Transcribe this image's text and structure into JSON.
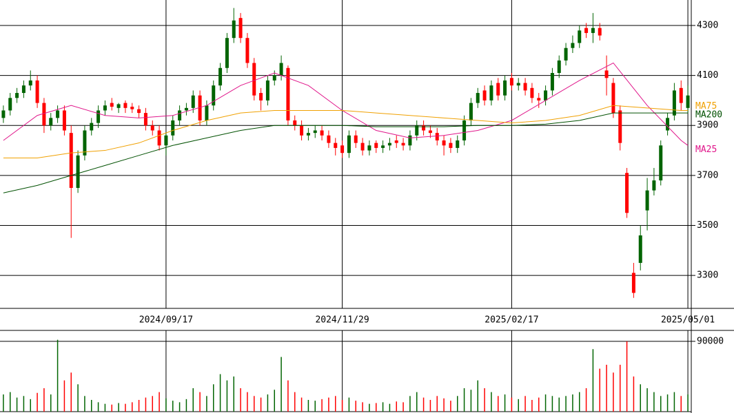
{
  "chart_data": {
    "type": "candlestick",
    "categories": [
      null,
      null,
      null,
      null,
      null,
      null,
      null,
      null,
      null,
      null,
      null,
      null,
      null,
      null,
      null,
      null,
      null,
      null,
      null,
      null,
      null,
      null,
      null,
      null,
      "2024/09/17",
      null,
      null,
      null,
      null,
      null,
      null,
      null,
      null,
      null,
      null,
      null,
      null,
      null,
      null,
      null,
      null,
      null,
      null,
      null,
      null,
      null,
      null,
      null,
      null,
      null,
      "2024/11/29",
      null,
      null,
      null,
      null,
      null,
      null,
      null,
      null,
      null,
      null,
      null,
      null,
      null,
      null,
      null,
      null,
      null,
      null,
      null,
      null,
      null,
      null,
      null,
      null,
      "2025/02/17",
      null,
      null,
      null,
      null,
      null,
      null,
      null,
      null,
      null,
      null,
      null,
      null,
      null,
      null,
      null,
      null,
      null,
      null,
      null,
      null,
      null,
      null,
      null,
      null,
      null,
      "2025/05/01"
    ],
    "open": [
      3930,
      3960,
      4010,
      4030,
      4060,
      4080,
      3990,
      3900,
      3930,
      3960,
      3870,
      3650,
      3780,
      3880,
      3910,
      3960,
      3990,
      3970,
      3990,
      3975,
      3965,
      3950,
      3900,
      3880,
      3820,
      3860,
      3920,
      3960,
      3970,
      4020,
      3920,
      3980,
      4060,
      4130,
      4250,
      4330,
      4250,
      4150,
      4030,
      4000,
      4080,
      4100,
      4130,
      3920,
      3900,
      3860,
      3870,
      3880,
      3860,
      3830,
      3820,
      3790,
      3860,
      3830,
      3800,
      3830,
      3810,
      3820,
      3840,
      3830,
      3820,
      3860,
      3900,
      3880,
      3870,
      3840,
      3830,
      3810,
      3840,
      3920,
      3990,
      4040,
      4000,
      4070,
      4020,
      4090,
      4060,
      4070,
      4050,
      4010,
      4000,
      4040,
      4110,
      4160,
      4210,
      4230,
      4290,
      4270,
      4290,
      4120,
      4070,
      3960,
      3710,
      3310,
      3350,
      3560,
      3640,
      3680,
      3880,
      3940,
      4050,
      3970
    ],
    "high": [
      3980,
      4030,
      4050,
      4080,
      4120,
      4100,
      4010,
      3950,
      3980,
      3980,
      3900,
      3800,
      3900,
      3930,
      3980,
      4000,
      4010,
      3990,
      4000,
      3990,
      3980,
      3970,
      3920,
      3900,
      3870,
      3940,
      3980,
      3990,
      4040,
      4040,
      4000,
      4080,
      4150,
      4270,
      4370,
      4350,
      4270,
      4170,
      4050,
      4100,
      4120,
      4180,
      4140,
      3940,
      3920,
      3890,
      3900,
      3900,
      3880,
      3850,
      3840,
      3880,
      3880,
      3850,
      3840,
      3840,
      3840,
      3850,
      3860,
      3850,
      3880,
      3920,
      3920,
      3900,
      3890,
      3860,
      3850,
      3860,
      3940,
      4010,
      4050,
      4060,
      4080,
      4090,
      4100,
      4110,
      4090,
      4090,
      4070,
      4030,
      4060,
      4130,
      4180,
      4230,
      4260,
      4300,
      4310,
      4350,
      4310,
      4180,
      4090,
      3980,
      3730,
      3350,
      3500,
      3690,
      3730,
      3840,
      3950,
      4070,
      4080,
      4060
    ],
    "low": [
      3910,
      3940,
      3990,
      4010,
      4040,
      3970,
      3870,
      3880,
      3910,
      3860,
      3450,
      3630,
      3760,
      3860,
      3890,
      3940,
      3960,
      3950,
      3950,
      3950,
      3930,
      3880,
      3860,
      3800,
      3780,
      3840,
      3900,
      3940,
      3950,
      3900,
      3900,
      3960,
      4040,
      4110,
      4230,
      4230,
      4130,
      4000,
      3960,
      3980,
      4060,
      4080,
      3900,
      3880,
      3840,
      3840,
      3850,
      3840,
      3810,
      3780,
      3770,
      3770,
      3810,
      3780,
      3780,
      3790,
      3790,
      3800,
      3810,
      3800,
      3800,
      3840,
      3860,
      3850,
      3820,
      3780,
      3790,
      3790,
      3820,
      3900,
      3970,
      3980,
      3980,
      4000,
      4000,
      4040,
      4040,
      4020,
      3990,
      3970,
      3980,
      4020,
      4090,
      4140,
      4190,
      4210,
      4250,
      4230,
      4240,
      4020,
      3930,
      3800,
      3530,
      3210,
      3320,
      3480,
      3620,
      3660,
      3860,
      3920,
      3960,
      3950
    ],
    "close": [
      3960,
      4010,
      4030,
      4060,
      4080,
      3990,
      3900,
      3930,
      3960,
      3880,
      3650,
      3780,
      3880,
      3910,
      3960,
      3980,
      3975,
      3985,
      3970,
      3965,
      3950,
      3900,
      3880,
      3820,
      3860,
      3920,
      3960,
      3970,
      4020,
      3920,
      3980,
      4060,
      4130,
      4250,
      4320,
      4250,
      4150,
      4020,
      4000,
      4080,
      4100,
      4150,
      3920,
      3900,
      3860,
      3870,
      3880,
      3860,
      3830,
      3810,
      3790,
      3860,
      3830,
      3800,
      3820,
      3810,
      3820,
      3830,
      3830,
      3820,
      3860,
      3900,
      3880,
      3870,
      3840,
      3820,
      3810,
      3840,
      3920,
      3990,
      4030,
      4000,
      4060,
      4020,
      4080,
      4060,
      4070,
      4040,
      4010,
      4000,
      4040,
      4110,
      4160,
      4210,
      4230,
      4280,
      4270,
      4290,
      4260,
      4090,
      3950,
      3830,
      3550,
      3230,
      3460,
      3640,
      3680,
      3820,
      3930,
      4040,
      3990,
      4020
    ],
    "up_color": "#006400",
    "down_color": "#ff0000",
    "ylim": [
      3168,
      4402
    ],
    "yticks": [
      3300,
      3500,
      3700,
      3900,
      4100,
      4300
    ],
    "grid": true,
    "overlays": [
      {
        "name": "MA25",
        "color": "#e0158a",
        "x": [
          0,
          5,
          10,
          15,
          20,
          25,
          30,
          35,
          40,
          45,
          50,
          55,
          60,
          65,
          70,
          75,
          80,
          85,
          90,
          95,
          100,
          101
        ],
        "values": [
          3840,
          3940,
          3980,
          3940,
          3930,
          3940,
          3980,
          4060,
          4110,
          4060,
          3960,
          3880,
          3850,
          3860,
          3880,
          3920,
          4000,
          4080,
          4150,
          3980,
          3840,
          3820
        ]
      },
      {
        "name": "MA75",
        "color": "#f0a000",
        "x": [
          0,
          5,
          10,
          15,
          20,
          25,
          30,
          35,
          40,
          45,
          50,
          55,
          60,
          65,
          70,
          75,
          80,
          85,
          90,
          95,
          100,
          101
        ],
        "values": [
          3770,
          3770,
          3790,
          3800,
          3830,
          3880,
          3920,
          3950,
          3960,
          3960,
          3960,
          3950,
          3940,
          3930,
          3920,
          3910,
          3920,
          3940,
          3980,
          3970,
          3960,
          3960
        ]
      },
      {
        "name": "MA200",
        "color": "#005000",
        "x": [
          0,
          5,
          10,
          15,
          20,
          25,
          30,
          35,
          40,
          45,
          50,
          55,
          60,
          65,
          70,
          75,
          80,
          85,
          90,
          95,
          100,
          101
        ],
        "values": [
          3630,
          3660,
          3700,
          3740,
          3780,
          3820,
          3850,
          3880,
          3900,
          3900,
          3900,
          3895,
          3895,
          3895,
          3900,
          3900,
          3905,
          3920,
          3950,
          3950,
          3950,
          3950
        ]
      }
    ],
    "volume": {
      "values": [
        22000,
        25000,
        18000,
        20000,
        16000,
        24000,
        30000,
        22000,
        92000,
        40000,
        50000,
        35000,
        20000,
        15000,
        12000,
        10000,
        9000,
        11000,
        10000,
        12000,
        15000,
        18000,
        20000,
        25000,
        17000,
        14000,
        12000,
        16000,
        30000,
        25000,
        20000,
        35000,
        48000,
        40000,
        45000,
        30000,
        25000,
        20000,
        18000,
        22000,
        28000,
        70000,
        40000,
        25000,
        18000,
        15000,
        14000,
        16000,
        18000,
        20000,
        15000,
        18000,
        14000,
        12000,
        10000,
        11000,
        12000,
        10000,
        13000,
        12000,
        20000,
        25000,
        18000,
        15000,
        20000,
        17000,
        14000,
        20000,
        30000,
        28000,
        40000,
        30000,
        25000,
        20000,
        22000,
        18000,
        16000,
        20000,
        15000,
        18000,
        22000,
        20000,
        18000,
        20000,
        22000,
        25000,
        30000,
        80000,
        55000,
        60000,
        50000,
        60000,
        90000,
        45000,
        35000,
        30000,
        25000,
        20000,
        22000,
        25000,
        20000,
        22000
      ],
      "ylim": [
        0,
        104000
      ],
      "yticks": [
        90000
      ]
    }
  }
}
